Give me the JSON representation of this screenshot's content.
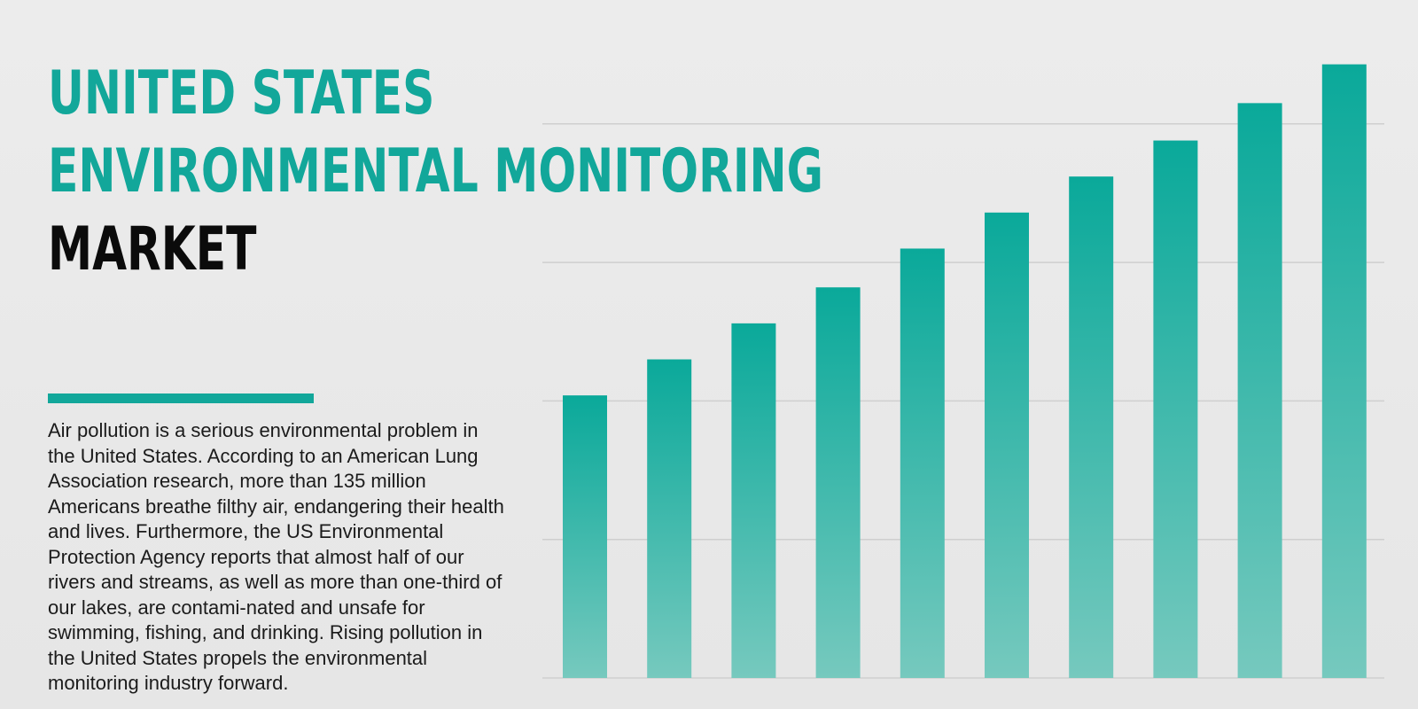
{
  "headline": {
    "line1": "UNITED STATES",
    "line2": "ENVIRONMENTAL MONITORING",
    "line3": "MARKET"
  },
  "body_text": "Air pollution is a serious environmental problem in the United States. According to an American Lung Association research, more than 135 million Americans breathe filthy air, endangering their health and lives. Furthermore, the US Environmental Protection Agency reports that almost half of our rivers and streams, as well as more than one-third of our lakes, are contami-nated and unsafe for swimming, fishing, and drinking. Rising pollution in the United States propels the environmental monitoring industry forward.",
  "colors": {
    "accent": "#12a79a",
    "bar_top": "#0aa99a",
    "bar_bottom": "#76c9be",
    "gridline": "#cfcfcf",
    "background": "#e8e8e8"
  },
  "chart_data": {
    "type": "bar",
    "categories": [
      "",
      "",
      "",
      "",
      "",
      "",
      "",
      "",
      "",
      ""
    ],
    "values": [
      20.4,
      23.0,
      25.6,
      28.2,
      31.0,
      33.6,
      36.2,
      38.8,
      41.5,
      44.3
    ],
    "ylim": [
      0,
      44
    ],
    "gridlines": [
      10,
      20,
      30,
      40
    ],
    "grid": true,
    "axis_labels_visible": false,
    "legend": "none"
  }
}
